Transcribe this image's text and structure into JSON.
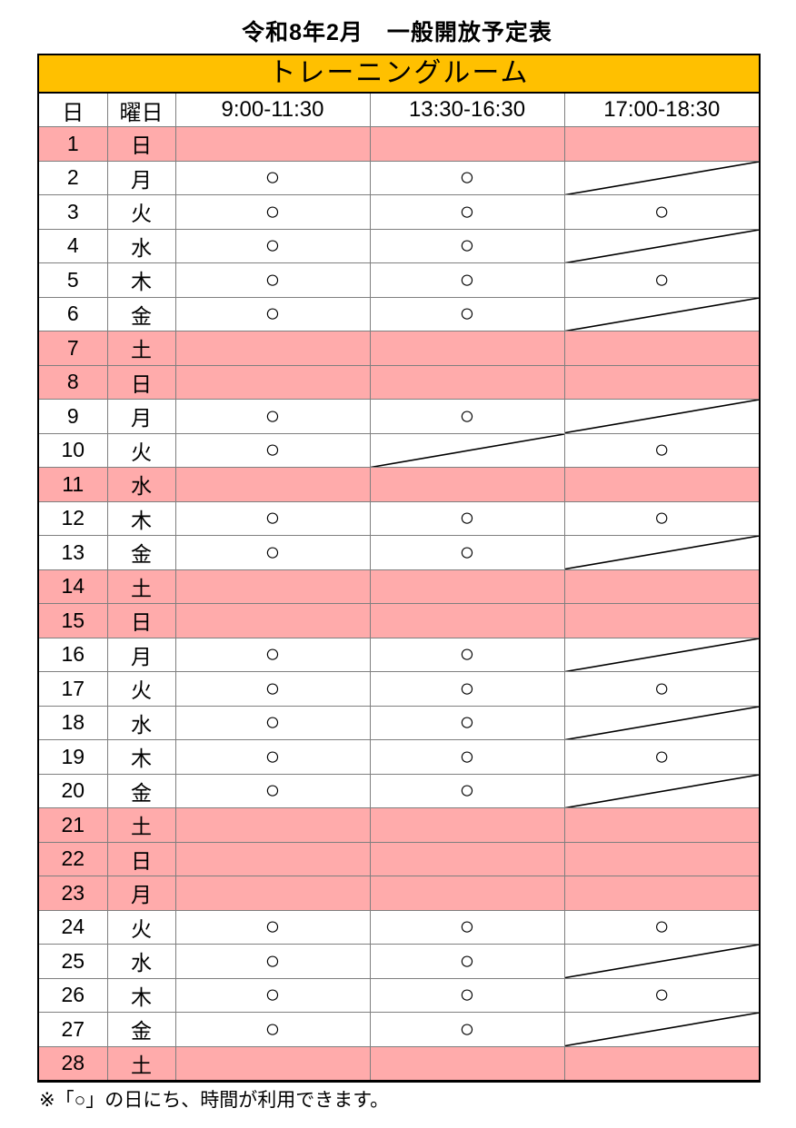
{
  "page_title": "令和8年2月　一般開放予定表",
  "room_banner": "トレーニングルーム",
  "note": "※「○」の日にち、時間が利用できます。",
  "colors": {
    "banner_bg": "#FFC000",
    "closed_row_bg": "#FFABAB",
    "inner_border": "#7F7F7F",
    "outer_border": "#000000"
  },
  "table": {
    "columns": [
      "日",
      "曜日",
      "9:00-11:30",
      "13:30-16:30",
      "17:00-18:30"
    ],
    "open_symbol": "○",
    "rows": [
      {
        "day": "1",
        "weekday": "日",
        "closed_day": true,
        "slots": [
          "closed",
          "closed",
          "closed"
        ]
      },
      {
        "day": "2",
        "weekday": "月",
        "closed_day": false,
        "slots": [
          "open",
          "open",
          "slash"
        ]
      },
      {
        "day": "3",
        "weekday": "火",
        "closed_day": false,
        "slots": [
          "open",
          "open",
          "open"
        ]
      },
      {
        "day": "4",
        "weekday": "水",
        "closed_day": false,
        "slots": [
          "open",
          "open",
          "slash"
        ]
      },
      {
        "day": "5",
        "weekday": "木",
        "closed_day": false,
        "slots": [
          "open",
          "open",
          "open"
        ]
      },
      {
        "day": "6",
        "weekday": "金",
        "closed_day": false,
        "slots": [
          "open",
          "open",
          "slash"
        ]
      },
      {
        "day": "7",
        "weekday": "土",
        "closed_day": true,
        "slots": [
          "closed",
          "closed",
          "closed"
        ]
      },
      {
        "day": "8",
        "weekday": "日",
        "closed_day": true,
        "slots": [
          "closed",
          "closed",
          "closed"
        ]
      },
      {
        "day": "9",
        "weekday": "月",
        "closed_day": false,
        "slots": [
          "open",
          "open",
          "slash"
        ]
      },
      {
        "day": "10",
        "weekday": "火",
        "closed_day": false,
        "slots": [
          "open",
          "slash",
          "open"
        ]
      },
      {
        "day": "11",
        "weekday": "水",
        "closed_day": true,
        "slots": [
          "closed",
          "closed",
          "closed"
        ]
      },
      {
        "day": "12",
        "weekday": "木",
        "closed_day": false,
        "slots": [
          "open",
          "open",
          "open"
        ]
      },
      {
        "day": "13",
        "weekday": "金",
        "closed_day": false,
        "slots": [
          "open",
          "open",
          "slash"
        ]
      },
      {
        "day": "14",
        "weekday": "土",
        "closed_day": true,
        "slots": [
          "closed",
          "closed",
          "closed"
        ]
      },
      {
        "day": "15",
        "weekday": "日",
        "closed_day": true,
        "slots": [
          "closed",
          "closed",
          "closed"
        ]
      },
      {
        "day": "16",
        "weekday": "月",
        "closed_day": false,
        "slots": [
          "open",
          "open",
          "slash"
        ]
      },
      {
        "day": "17",
        "weekday": "火",
        "closed_day": false,
        "slots": [
          "open",
          "open",
          "open"
        ]
      },
      {
        "day": "18",
        "weekday": "水",
        "closed_day": false,
        "slots": [
          "open",
          "open",
          "slash"
        ]
      },
      {
        "day": "19",
        "weekday": "木",
        "closed_day": false,
        "slots": [
          "open",
          "open",
          "open"
        ]
      },
      {
        "day": "20",
        "weekday": "金",
        "closed_day": false,
        "slots": [
          "open",
          "open",
          "slash"
        ]
      },
      {
        "day": "21",
        "weekday": "土",
        "closed_day": true,
        "slots": [
          "closed",
          "closed",
          "closed"
        ]
      },
      {
        "day": "22",
        "weekday": "日",
        "closed_day": true,
        "slots": [
          "closed",
          "closed",
          "closed"
        ]
      },
      {
        "day": "23",
        "weekday": "月",
        "closed_day": true,
        "slots": [
          "closed",
          "closed",
          "closed"
        ]
      },
      {
        "day": "24",
        "weekday": "火",
        "closed_day": false,
        "slots": [
          "open",
          "open",
          "open"
        ]
      },
      {
        "day": "25",
        "weekday": "水",
        "closed_day": false,
        "slots": [
          "open",
          "open",
          "slash"
        ]
      },
      {
        "day": "26",
        "weekday": "木",
        "closed_day": false,
        "slots": [
          "open",
          "open",
          "open"
        ]
      },
      {
        "day": "27",
        "weekday": "金",
        "closed_day": false,
        "slots": [
          "open",
          "open",
          "slash"
        ]
      },
      {
        "day": "28",
        "weekday": "土",
        "closed_day": true,
        "slots": [
          "closed",
          "closed",
          "closed"
        ]
      }
    ]
  }
}
